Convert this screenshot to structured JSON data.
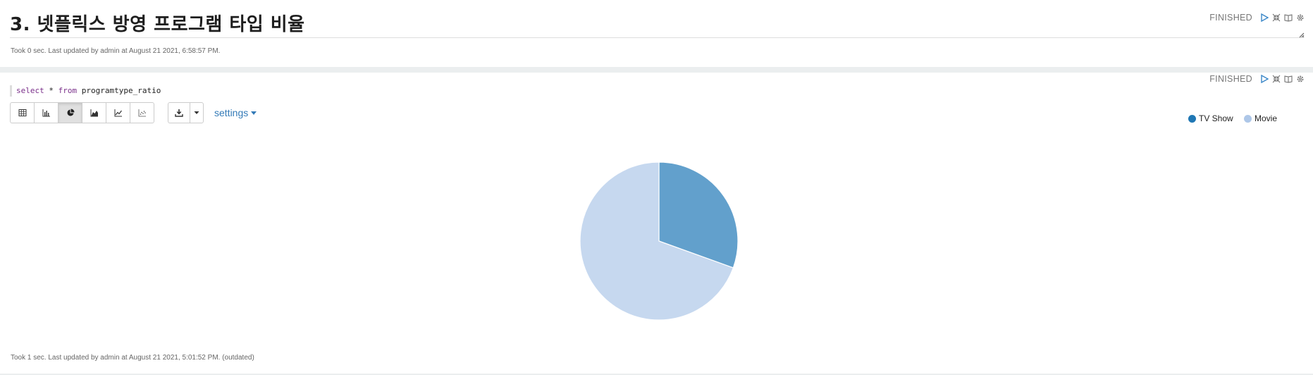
{
  "paragraph1": {
    "title": "3. 넷플릭스 방영 프로그램 타입 비율",
    "status": "FINISHED",
    "footer": "Took 0 sec. Last updated by admin at August 21 2021, 6:58:57 PM."
  },
  "paragraph2": {
    "code": {
      "kw_select": "select",
      "star": " * ",
      "kw_from": "from",
      "table": " programtype_ratio"
    },
    "status": "FINISHED",
    "toolbar": {
      "buttons": [
        "table-icon",
        "bar-chart-icon",
        "pie-chart-icon",
        "area-chart-icon",
        "line-chart-icon",
        "scatter-chart-icon"
      ],
      "active": "pie-chart-icon",
      "download_icon": "download-icon",
      "settings_label": "settings"
    },
    "footer": "Took 1 sec. Last updated by admin at August 21 2021, 5:01:52 PM. (outdated)"
  },
  "legend": [
    {
      "label": "TV Show",
      "color": "#1f77b4"
    },
    {
      "label": "Movie",
      "color": "#aec7e8"
    }
  ],
  "colors": {
    "accent": "#337ab7",
    "slice_tv": "#62a0cc",
    "slice_movie": "#c6d8ef"
  },
  "chart_data": {
    "type": "pie",
    "categories": [
      "TV Show",
      "Movie"
    ],
    "values": [
      30.5,
      69.5
    ]
  }
}
